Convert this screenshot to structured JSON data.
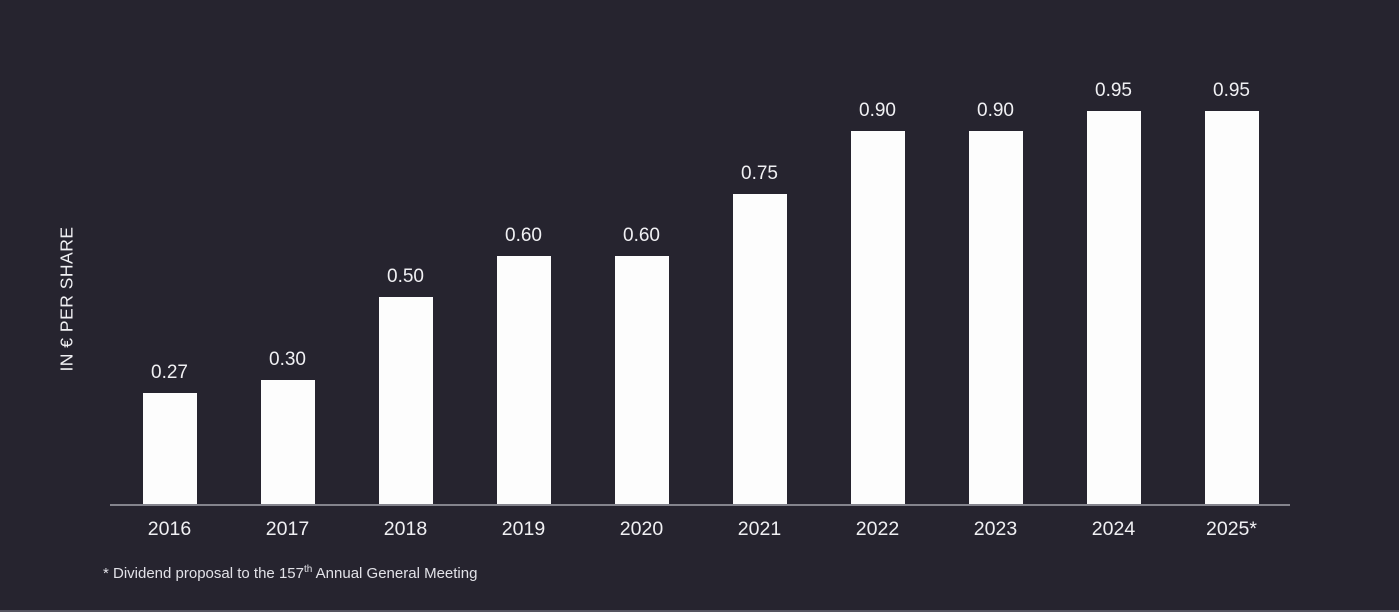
{
  "colors": {
    "background": "#26242f",
    "bar": "#fdfdfd",
    "text": "#f0f0f3",
    "axis": "#84848d",
    "bottom_edge": "#55545f"
  },
  "chart_data": {
    "type": "bar",
    "title": "",
    "ylabel": "IN € PER SHARE",
    "xlabel": "",
    "categories": [
      "2016",
      "2017",
      "2018",
      "2019",
      "2020",
      "2021",
      "2022",
      "2023",
      "2024",
      "2025*"
    ],
    "values": [
      0.27,
      0.3,
      0.5,
      0.6,
      0.6,
      0.75,
      0.9,
      0.9,
      0.95,
      0.95
    ],
    "value_labels": [
      "0.27",
      "0.30",
      "0.50",
      "0.60",
      "0.60",
      "0.75",
      "0.90",
      "0.90",
      "0.95",
      "0.95"
    ],
    "ylim": [
      0,
      0.95
    ],
    "grid": false,
    "legend": "none",
    "bar_color": "#fdfdfd",
    "background_color": "#26242f"
  },
  "footnote": {
    "prefix": "* Dividend proposal to the 157",
    "superscript": "th",
    "suffix": " Annual General Meeting"
  }
}
